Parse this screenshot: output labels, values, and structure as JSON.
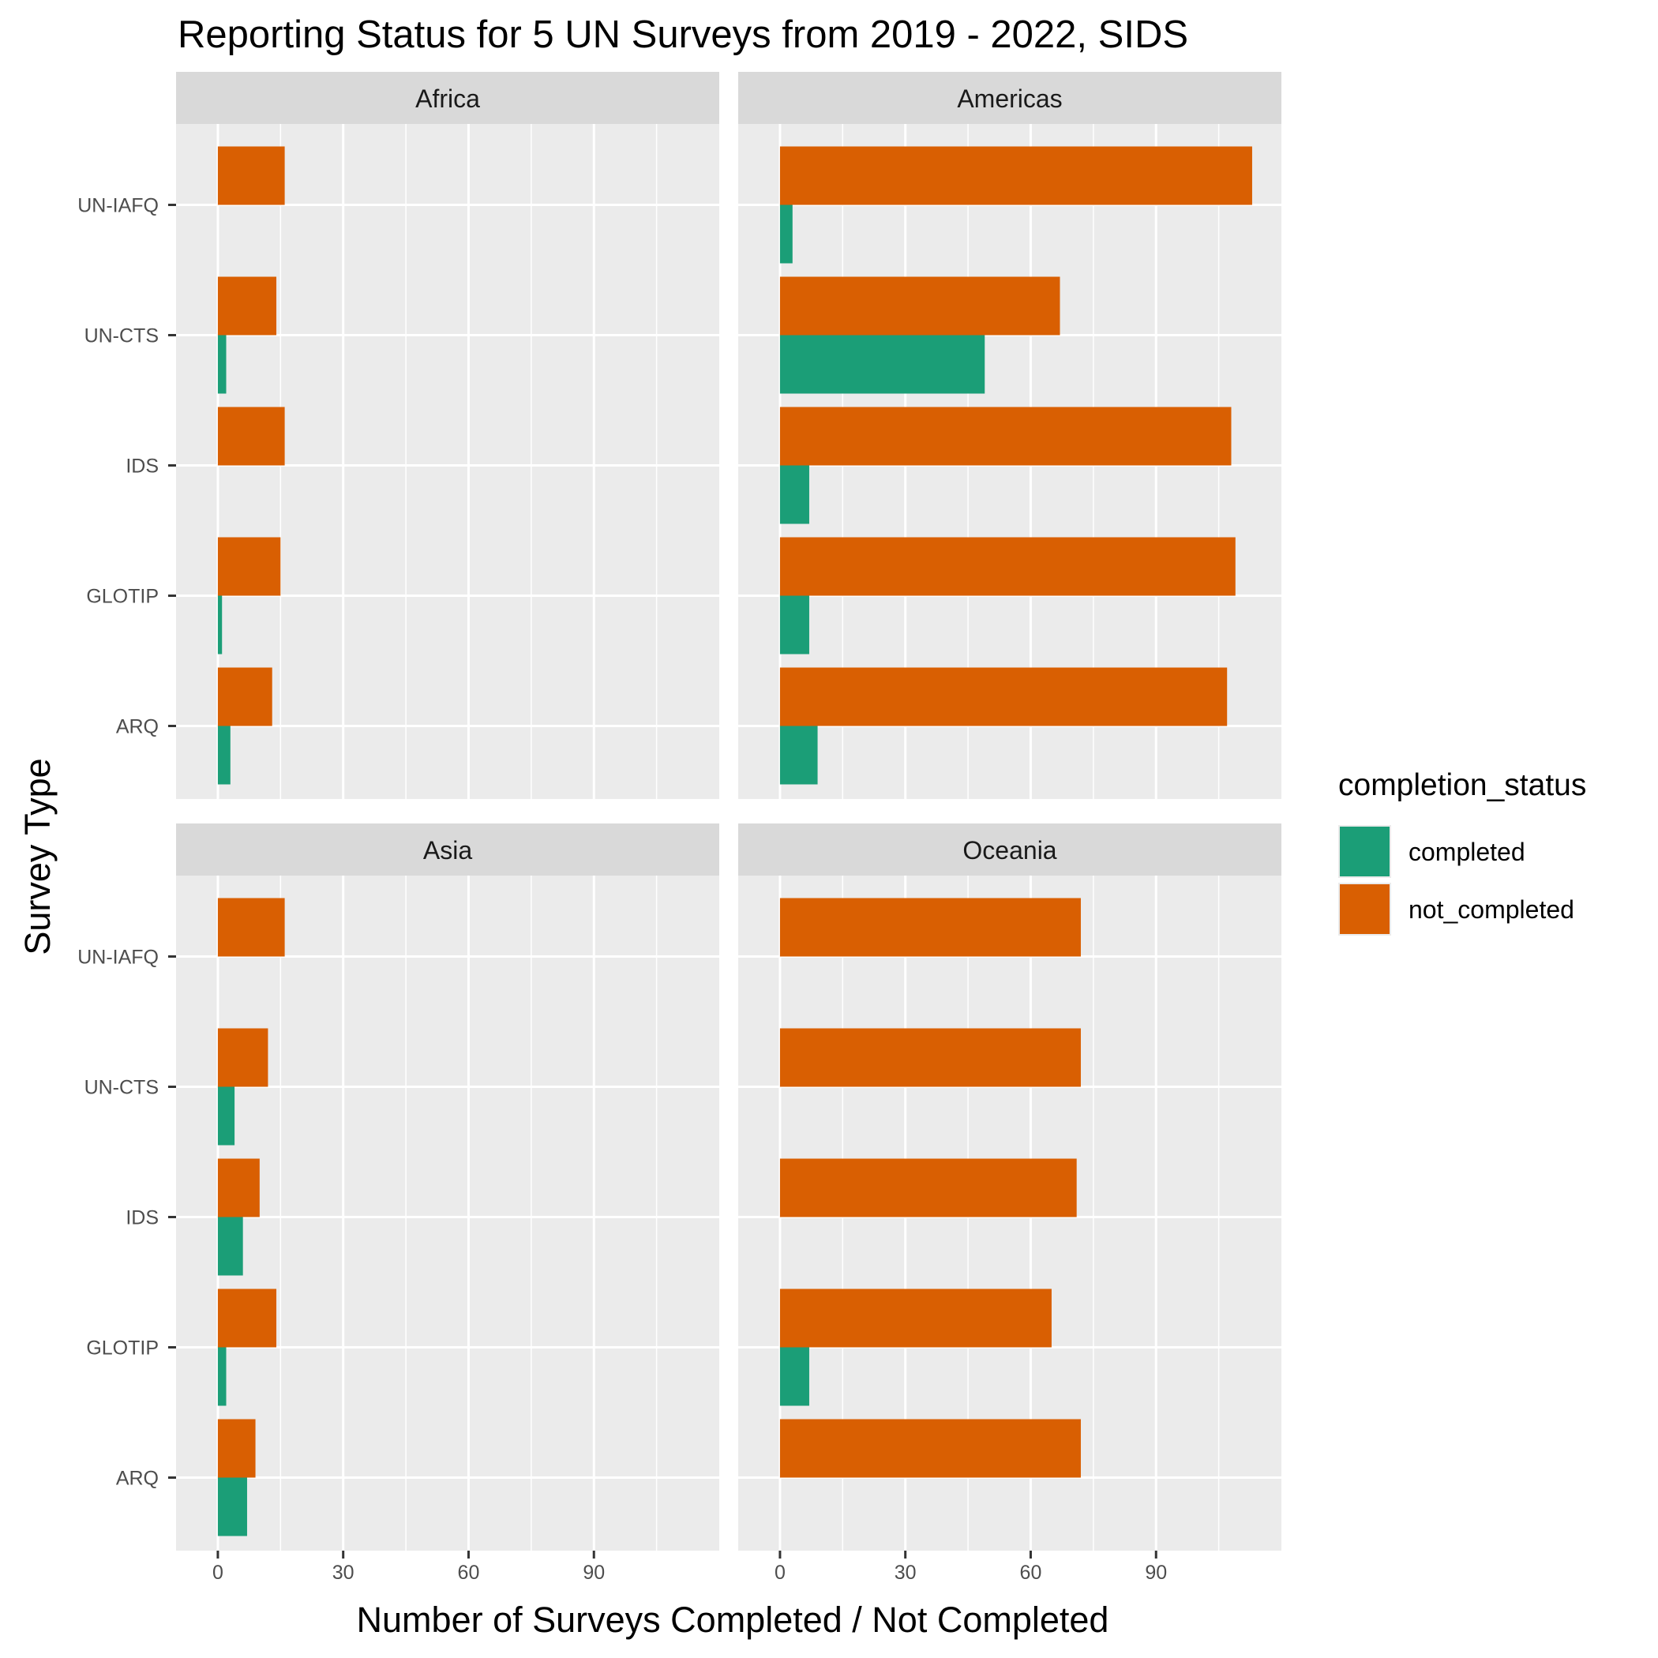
{
  "chart_data": {
    "type": "bar",
    "orientation": "horizontal",
    "title": "Reporting Status for 5 UN Surveys from 2019 - 2022, SIDS",
    "xlabel": "Number of Surveys Completed / Not Completed",
    "ylabel": "Survey Type",
    "xlim": [
      -10,
      120
    ],
    "x_ticks": [
      0,
      30,
      60,
      90
    ],
    "categories": [
      "ARQ",
      "GLOTIP",
      "IDS",
      "UN-CTS",
      "UN-IAFQ"
    ],
    "legend": {
      "title": "completion_status",
      "position": "right",
      "entries": [
        {
          "name": "completed",
          "color": "#1b9e77"
        },
        {
          "name": "not_completed",
          "color": "#d95f02"
        }
      ]
    },
    "grid": true,
    "facets": [
      {
        "label": "Africa",
        "series": [
          {
            "name": "completed",
            "values": [
              3,
              1,
              0,
              2,
              0
            ]
          },
          {
            "name": "not_completed",
            "values": [
              13,
              15,
              16,
              14,
              16
            ]
          }
        ]
      },
      {
        "label": "Americas",
        "series": [
          {
            "name": "completed",
            "values": [
              9,
              7,
              7,
              49,
              3
            ]
          },
          {
            "name": "not_completed",
            "values": [
              107,
              109,
              108,
              67,
              113
            ]
          }
        ]
      },
      {
        "label": "Asia",
        "series": [
          {
            "name": "completed",
            "values": [
              7,
              2,
              6,
              4,
              0
            ]
          },
          {
            "name": "not_completed",
            "values": [
              9,
              14,
              10,
              12,
              16
            ]
          }
        ]
      },
      {
        "label": "Oceania",
        "series": [
          {
            "name": "completed",
            "values": [
              0,
              7,
              0,
              0,
              0
            ]
          },
          {
            "name": "not_completed",
            "values": [
              72,
              65,
              71,
              72,
              72
            ]
          }
        ]
      }
    ]
  }
}
